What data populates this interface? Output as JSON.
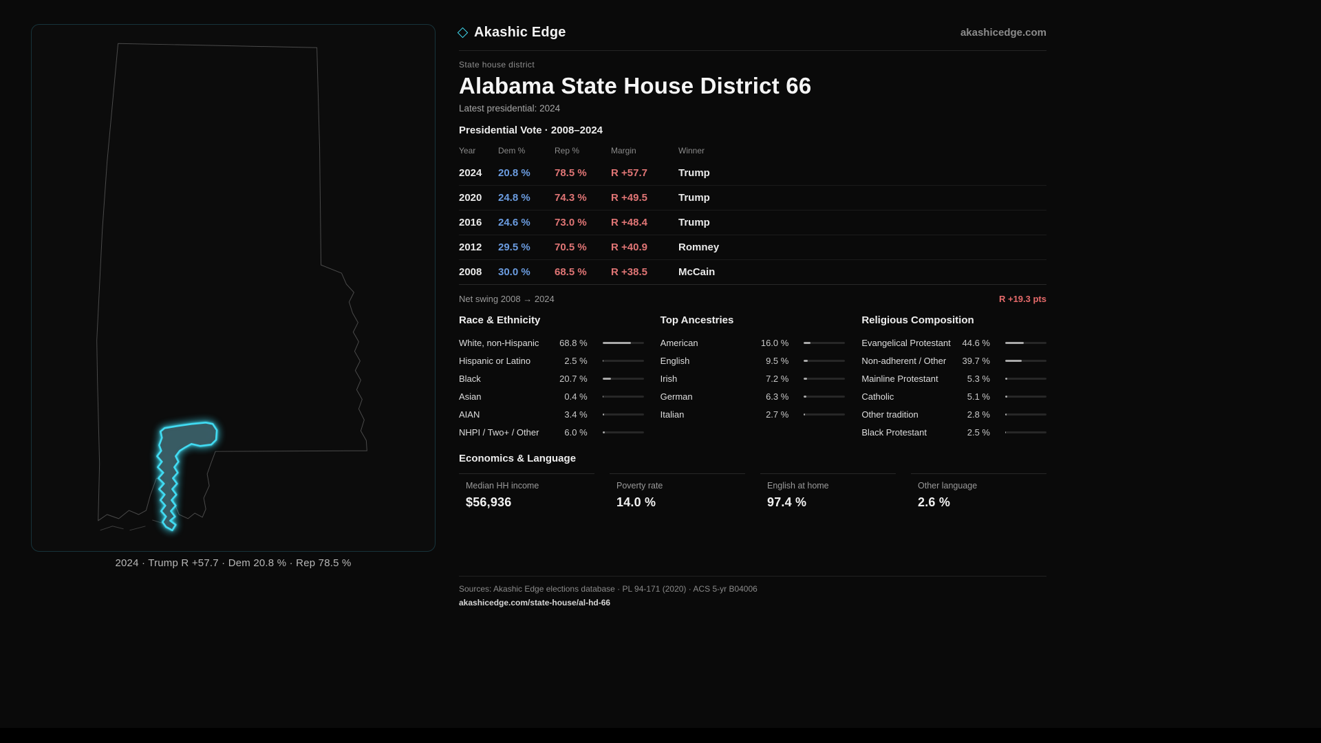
{
  "brand": {
    "name": "Akashic Edge",
    "site": "akashicedge.com"
  },
  "page": {
    "kicker": "State house district",
    "title": "Alabama State House District 66",
    "latest": "Latest presidential: 2024"
  },
  "map": {
    "caption": "2024 · Trump R +57.7 · Dem 20.8 % · Rep 78.5 %",
    "accent_color": "#41dbf2"
  },
  "vote": {
    "title": "Presidential Vote · 2008–2024",
    "columns": [
      "Year",
      "Dem %",
      "Rep %",
      "Margin",
      "Winner"
    ],
    "rows": [
      {
        "year": "2024",
        "dem": "20.8 %",
        "rep": "78.5 %",
        "margin": "R +57.7",
        "winner": "Trump"
      },
      {
        "year": "2020",
        "dem": "24.8 %",
        "rep": "74.3 %",
        "margin": "R +49.5",
        "winner": "Trump"
      },
      {
        "year": "2016",
        "dem": "24.6 %",
        "rep": "73.0 %",
        "margin": "R +48.4",
        "winner": "Trump"
      },
      {
        "year": "2012",
        "dem": "29.5 %",
        "rep": "70.5 %",
        "margin": "R +40.9",
        "winner": "Romney"
      },
      {
        "year": "2008",
        "dem": "30.0 %",
        "rep": "68.5 %",
        "margin": "R +38.5",
        "winner": "McCain"
      }
    ],
    "swing_label": "Net swing 2008 → 2024",
    "swing_value": "R +19.3 pts"
  },
  "demographics": {
    "race": {
      "title": "Race & Ethnicity",
      "rows": [
        {
          "label": "White, non-Hispanic",
          "value": "68.8 %",
          "pct": 68.8
        },
        {
          "label": "Hispanic or Latino",
          "value": "2.5 %",
          "pct": 2.5
        },
        {
          "label": "Black",
          "value": "20.7 %",
          "pct": 20.7
        },
        {
          "label": "Asian",
          "value": "0.4 %",
          "pct": 0.4
        },
        {
          "label": "AIAN",
          "value": "3.4 %",
          "pct": 3.4
        },
        {
          "label": "NHPI / Two+ / Other",
          "value": "6.0 %",
          "pct": 6.0
        }
      ]
    },
    "ancestries": {
      "title": "Top Ancestries",
      "rows": [
        {
          "label": "American",
          "value": "16.0 %",
          "pct": 16.0
        },
        {
          "label": "English",
          "value": "9.5 %",
          "pct": 9.5
        },
        {
          "label": "Irish",
          "value": "7.2 %",
          "pct": 7.2
        },
        {
          "label": "German",
          "value": "6.3 %",
          "pct": 6.3
        },
        {
          "label": "Italian",
          "value": "2.7 %",
          "pct": 2.7
        }
      ]
    },
    "religion": {
      "title": "Religious Composition",
      "rows": [
        {
          "label": "Evangelical Protestant",
          "value": "44.6 %",
          "pct": 44.6
        },
        {
          "label": "Non-adherent / Other",
          "value": "39.7 %",
          "pct": 39.7
        },
        {
          "label": "Mainline Protestant",
          "value": "5.3 %",
          "pct": 5.3
        },
        {
          "label": "Catholic",
          "value": "5.1 %",
          "pct": 5.1
        },
        {
          "label": "Other tradition",
          "value": "2.8 %",
          "pct": 2.8
        },
        {
          "label": "Black Protestant",
          "value": "2.5 %",
          "pct": 2.5
        }
      ]
    }
  },
  "economics": {
    "title": "Economics & Language",
    "stats": [
      {
        "label": "Median HH income",
        "value": "$56,936"
      },
      {
        "label": "Poverty rate",
        "value": "14.0 %"
      },
      {
        "label": "English at home",
        "value": "97.4 %"
      },
      {
        "label": "Other language",
        "value": "2.6 %"
      }
    ]
  },
  "footer": {
    "sources": "Sources: Akashic Edge elections database · PL 94-171 (2020) · ACS 5-yr B04006",
    "permalink": "akashicedge.com/state-house/al-hd-66"
  },
  "colors": {
    "accent": "#41dbf2",
    "dem": "#6b9ce0",
    "rep": "#e07575"
  }
}
